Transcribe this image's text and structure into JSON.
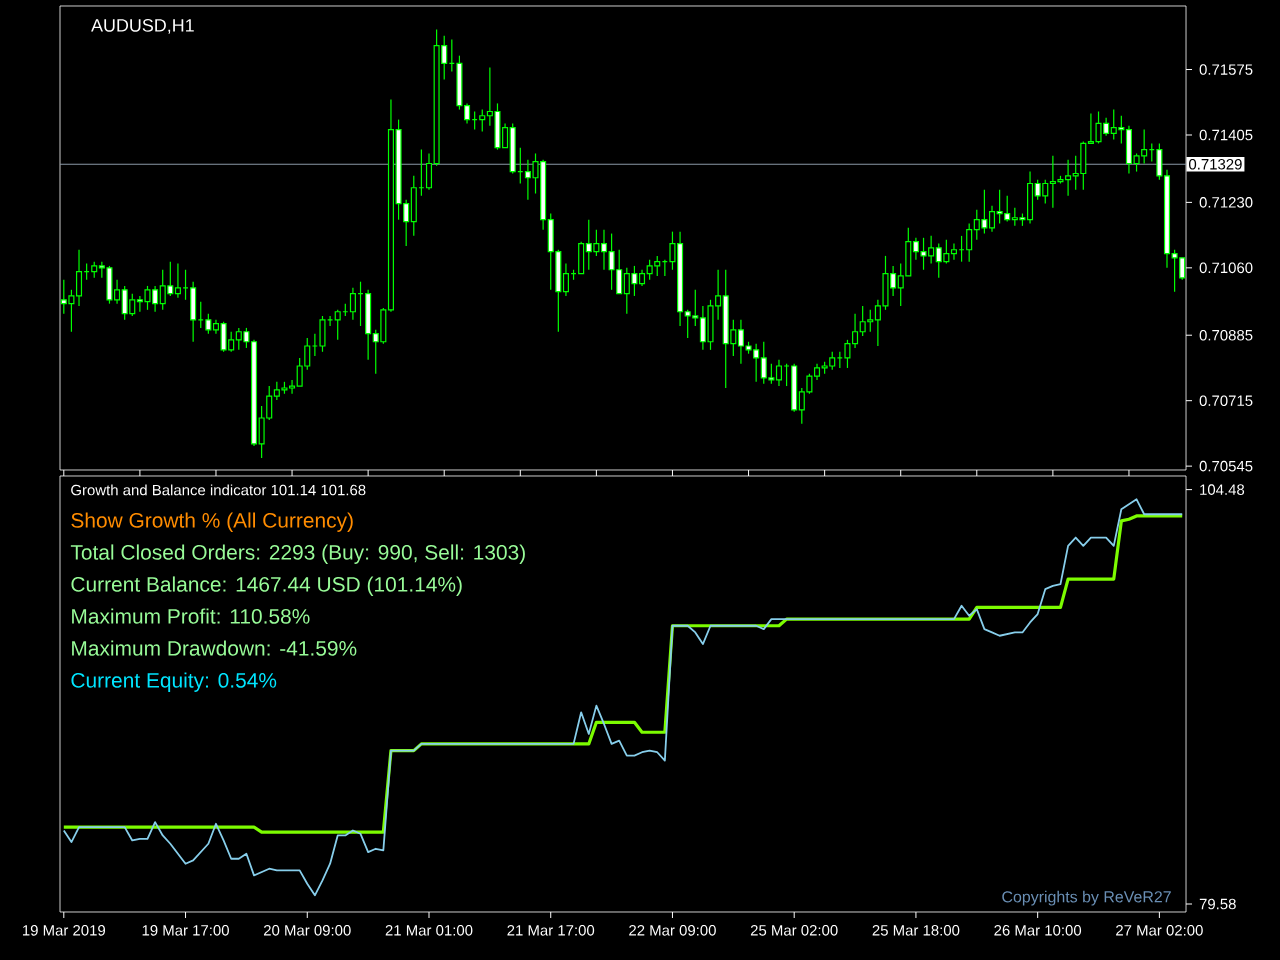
{
  "chart_data": [
    {
      "type": "candlestick",
      "title": "AUDUSD,H1",
      "color": "#00ff00",
      "tick_labels": "y",
      "categories": [
        null,
        null,
        null,
        null,
        null,
        null,
        null,
        null,
        null,
        null,
        null,
        null,
        null,
        null,
        null,
        null,
        null,
        null,
        null,
        null,
        null,
        null,
        null,
        null,
        null,
        null,
        null,
        null,
        null,
        null,
        null,
        null,
        null,
        null,
        null,
        null,
        null,
        null,
        null,
        null,
        null,
        null,
        null,
        null,
        null,
        null,
        null,
        null,
        null,
        null,
        null,
        null,
        null,
        null,
        null,
        null,
        null,
        null,
        null,
        null,
        null,
        null,
        null,
        null,
        null,
        null,
        null,
        null,
        null,
        null,
        null,
        null,
        null,
        null,
        null,
        null,
        null,
        null,
        null,
        null,
        null,
        null,
        null,
        null,
        null,
        null,
        null,
        null,
        null,
        null,
        null,
        null,
        null,
        null,
        null,
        null,
        null,
        null,
        null,
        null,
        null,
        null,
        null,
        null,
        null,
        null,
        null,
        null,
        null,
        null,
        null,
        null,
        null,
        null,
        null,
        null,
        null,
        null,
        null,
        null,
        null,
        null,
        null,
        null,
        null,
        null,
        null,
        null,
        null,
        null,
        null,
        null,
        null,
        null,
        null,
        null,
        null,
        null,
        null,
        null,
        null,
        null,
        null,
        null,
        null,
        null,
        null,
        null
      ],
      "ohlc": [
        [
          0.70977,
          0.71029,
          0.70941,
          0.70967
        ],
        [
          0.70967,
          0.71003,
          0.70894,
          0.70987
        ],
        [
          0.70987,
          0.71107,
          0.70961,
          0.7105
        ],
        [
          0.7105,
          0.71071,
          0.71029,
          0.7105
        ],
        [
          0.7105,
          0.71076,
          0.71034,
          0.71065
        ],
        [
          0.71065,
          0.71076,
          0.71034,
          0.7106
        ],
        [
          0.7106,
          0.71065,
          0.70967,
          0.70977
        ],
        [
          0.70977,
          0.71029,
          0.70967,
          0.71003
        ],
        [
          0.71003,
          0.71013,
          0.70925,
          0.70941
        ],
        [
          0.70941,
          0.70993,
          0.70935,
          0.70977
        ],
        [
          0.70977,
          0.70987,
          0.70946,
          0.70972
        ],
        [
          0.70972,
          0.71013,
          0.70951,
          0.71003
        ],
        [
          0.71003,
          0.71013,
          0.70946,
          0.70967
        ],
        [
          0.70967,
          0.71055,
          0.70951,
          0.71013
        ],
        [
          0.71013,
          0.71076,
          0.70987,
          0.70993
        ],
        [
          0.70993,
          0.71071,
          0.70982,
          0.71008
        ],
        [
          0.71008,
          0.71055,
          0.70977,
          0.71008
        ],
        [
          0.71008,
          0.71024,
          0.70868,
          0.70925
        ],
        [
          0.70925,
          0.70972,
          0.70904,
          0.70925
        ],
        [
          0.70925,
          0.70941,
          0.70889,
          0.70899
        ],
        [
          0.70899,
          0.70925,
          0.70889,
          0.70915
        ],
        [
          0.70915,
          0.7092,
          0.70842,
          0.70847
        ],
        [
          0.70847,
          0.70894,
          0.70842,
          0.70873
        ],
        [
          0.70873,
          0.70904,
          0.70847,
          0.70894
        ],
        [
          0.70894,
          0.70904,
          0.70852,
          0.70868
        ],
        [
          0.70868,
          0.70873,
          0.70597,
          0.70603
        ],
        [
          0.70603,
          0.70701,
          0.70566,
          0.7067
        ],
        [
          0.7067,
          0.70753,
          0.70665,
          0.70727
        ],
        [
          0.70727,
          0.70764,
          0.70717,
          0.70743
        ],
        [
          0.70743,
          0.70764,
          0.70733,
          0.70748
        ],
        [
          0.70748,
          0.70769,
          0.70733,
          0.70753
        ],
        [
          0.70753,
          0.70826,
          0.70753,
          0.70805
        ],
        [
          0.70805,
          0.70878,
          0.70795,
          0.70857
        ],
        [
          0.70857,
          0.70889,
          0.70831,
          0.70857
        ],
        [
          0.70857,
          0.70935,
          0.70842,
          0.70925
        ],
        [
          0.70925,
          0.70935,
          0.70909,
          0.70925
        ],
        [
          0.70925,
          0.70951,
          0.70873,
          0.70946
        ],
        [
          0.70946,
          0.70967,
          0.70935,
          0.70946
        ],
        [
          0.70946,
          0.71008,
          0.70925,
          0.70993
        ],
        [
          0.70993,
          0.71024,
          0.70909,
          0.70993
        ],
        [
          0.70993,
          0.71003,
          0.70821,
          0.70889
        ],
        [
          0.70889,
          0.70899,
          0.70785,
          0.70868
        ],
        [
          0.70868,
          0.70956,
          0.70863,
          0.70951
        ],
        [
          0.70951,
          0.71497,
          0.70946,
          0.71419
        ],
        [
          0.71419,
          0.71445,
          0.71185,
          0.71227
        ],
        [
          0.71227,
          0.71237,
          0.71117,
          0.7118
        ],
        [
          0.7118,
          0.71299,
          0.71143,
          0.71268
        ],
        [
          0.71268,
          0.71367,
          0.71247,
          0.71268
        ],
        [
          0.71268,
          0.71357,
          0.71263,
          0.71331
        ],
        [
          0.71331,
          0.71679,
          0.71325,
          0.71637
        ],
        [
          0.71637,
          0.71663,
          0.71549,
          0.71591
        ],
        [
          0.71591,
          0.71653,
          0.7157,
          0.71591
        ],
        [
          0.71591,
          0.71611,
          0.71471,
          0.71481
        ],
        [
          0.71481,
          0.71487,
          0.71435,
          0.71445
        ],
        [
          0.71445,
          0.71466,
          0.71419,
          0.71445
        ],
        [
          0.71445,
          0.71471,
          0.71414,
          0.71455
        ],
        [
          0.71455,
          0.7158,
          0.71429,
          0.71466
        ],
        [
          0.71466,
          0.71487,
          0.71367,
          0.71372
        ],
        [
          0.71372,
          0.71435,
          0.71372,
          0.71424
        ],
        [
          0.71424,
          0.71435,
          0.71305,
          0.7131
        ],
        [
          0.7131,
          0.71372,
          0.71279,
          0.7131
        ],
        [
          0.7131,
          0.71341,
          0.71237,
          0.71294
        ],
        [
          0.71294,
          0.71357,
          0.71253,
          0.71336
        ],
        [
          0.71336,
          0.71341,
          0.71159,
          0.71185
        ],
        [
          0.71185,
          0.71201,
          0.71003,
          0.71102
        ],
        [
          0.71102,
          0.71107,
          0.70894,
          0.70998
        ],
        [
          0.70998,
          0.71071,
          0.70987,
          0.71045
        ],
        [
          0.71045,
          0.71055,
          0.71029,
          0.71045
        ],
        [
          0.71045,
          0.71128,
          0.71045,
          0.71123
        ],
        [
          0.71123,
          0.71185,
          0.71055,
          0.71102
        ],
        [
          0.71102,
          0.71159,
          0.71091,
          0.71123
        ],
        [
          0.71123,
          0.71159,
          0.71055,
          0.71102
        ],
        [
          0.71102,
          0.71149,
          0.71003,
          0.71055
        ],
        [
          0.71055,
          0.71107,
          0.70993,
          0.70993
        ],
        [
          0.70993,
          0.7106,
          0.70941,
          0.71045
        ],
        [
          0.71045,
          0.71065,
          0.70987,
          0.71019
        ],
        [
          0.71019,
          0.71055,
          0.71013,
          0.71045
        ],
        [
          0.71045,
          0.71081,
          0.71029,
          0.71065
        ],
        [
          0.71065,
          0.71091,
          0.71039,
          0.71076
        ],
        [
          0.71076,
          0.71081,
          0.71039,
          0.71076
        ],
        [
          0.71076,
          0.71154,
          0.71055,
          0.71123
        ],
        [
          0.71123,
          0.71154,
          0.70909,
          0.70946
        ],
        [
          0.70946,
          0.70951,
          0.70878,
          0.70935
        ],
        [
          0.70935,
          0.71003,
          0.70909,
          0.7093
        ],
        [
          0.7093,
          0.70961,
          0.70847,
          0.70868
        ],
        [
          0.70868,
          0.70977,
          0.70847,
          0.70961
        ],
        [
          0.70961,
          0.71055,
          0.70925,
          0.70987
        ],
        [
          0.70987,
          0.71055,
          0.70748,
          0.70863
        ],
        [
          0.70863,
          0.70925,
          0.70831,
          0.70899
        ],
        [
          0.70899,
          0.70925,
          0.70811,
          0.70857
        ],
        [
          0.70857,
          0.70868,
          0.70837,
          0.70847
        ],
        [
          0.70847,
          0.70863,
          0.70764,
          0.70826
        ],
        [
          0.70826,
          0.70868,
          0.70759,
          0.70774
        ],
        [
          0.70774,
          0.70811,
          0.70759,
          0.70769
        ],
        [
          0.70769,
          0.70821,
          0.70753,
          0.70805
        ],
        [
          0.70805,
          0.70811,
          0.70753,
          0.70805
        ],
        [
          0.70805,
          0.70811,
          0.70686,
          0.70691
        ],
        [
          0.70691,
          0.70748,
          0.70655,
          0.70738
        ],
        [
          0.70738,
          0.70785,
          0.70733,
          0.70779
        ],
        [
          0.70779,
          0.70811,
          0.70769,
          0.708
        ],
        [
          0.708,
          0.70816,
          0.70785,
          0.70805
        ],
        [
          0.70805,
          0.70842,
          0.70795,
          0.70826
        ],
        [
          0.70826,
          0.70842,
          0.708,
          0.70826
        ],
        [
          0.70826,
          0.70873,
          0.708,
          0.70863
        ],
        [
          0.70863,
          0.70941,
          0.70852,
          0.70894
        ],
        [
          0.70894,
          0.70961,
          0.70883,
          0.7092
        ],
        [
          0.7092,
          0.70951,
          0.70894,
          0.70925
        ],
        [
          0.70925,
          0.70977,
          0.70857,
          0.70961
        ],
        [
          0.70961,
          0.71091,
          0.70951,
          0.71045
        ],
        [
          0.71045,
          0.71065,
          0.70987,
          0.71008
        ],
        [
          0.71008,
          0.71071,
          0.70961,
          0.71039
        ],
        [
          0.71039,
          0.71164,
          0.71039,
          0.71128
        ],
        [
          0.71128,
          0.71138,
          0.71081,
          0.71102
        ],
        [
          0.71102,
          0.71138,
          0.71055,
          0.71091
        ],
        [
          0.71091,
          0.71143,
          0.71071,
          0.71112
        ],
        [
          0.71112,
          0.71123,
          0.71034,
          0.71076
        ],
        [
          0.71076,
          0.71133,
          0.71071,
          0.71097
        ],
        [
          0.71097,
          0.71123,
          0.71081,
          0.71107
        ],
        [
          0.71107,
          0.71143,
          0.71076,
          0.71107
        ],
        [
          0.71107,
          0.71175,
          0.71076,
          0.71159
        ],
        [
          0.71159,
          0.71211,
          0.71133,
          0.71185
        ],
        [
          0.71185,
          0.71263,
          0.71149,
          0.71164
        ],
        [
          0.71164,
          0.71221,
          0.71154,
          0.71206
        ],
        [
          0.71206,
          0.71263,
          0.71175,
          0.71201
        ],
        [
          0.71201,
          0.71247,
          0.7118,
          0.71185
        ],
        [
          0.71185,
          0.71216,
          0.71169,
          0.7119
        ],
        [
          0.7119,
          0.71201,
          0.71169,
          0.71185
        ],
        [
          0.71185,
          0.7131,
          0.71175,
          0.71279
        ],
        [
          0.71279,
          0.71289,
          0.71237,
          0.71247
        ],
        [
          0.71247,
          0.71289,
          0.71227,
          0.71279
        ],
        [
          0.71279,
          0.71351,
          0.71216,
          0.71284
        ],
        [
          0.71284,
          0.71299,
          0.71279,
          0.71289
        ],
        [
          0.71289,
          0.71341,
          0.71247,
          0.71299
        ],
        [
          0.71299,
          0.71351,
          0.71263,
          0.71305
        ],
        [
          0.71305,
          0.71388,
          0.71263,
          0.71383
        ],
        [
          0.71383,
          0.71461,
          0.71383,
          0.71388
        ],
        [
          0.71388,
          0.71466,
          0.71383,
          0.71435
        ],
        [
          0.71435,
          0.7145,
          0.71403,
          0.71409
        ],
        [
          0.71409,
          0.71471,
          0.71393,
          0.71424
        ],
        [
          0.71424,
          0.71455,
          0.71383,
          0.71419
        ],
        [
          0.71419,
          0.71429,
          0.71305,
          0.71331
        ],
        [
          0.71331,
          0.71357,
          0.7131,
          0.71351
        ],
        [
          0.71351,
          0.71419,
          0.71331,
          0.71367
        ],
        [
          0.71367,
          0.71383,
          0.71336,
          0.71367
        ],
        [
          0.71367,
          0.71383,
          0.71289,
          0.71299
        ],
        [
          0.71299,
          0.71315,
          0.7106,
          0.71097
        ],
        [
          0.71097,
          0.71107,
          0.70998,
          0.71086
        ],
        [
          0.71086,
          0.71086,
          0.71029,
          0.71034
        ]
      ],
      "ylim": [
        0.70535,
        0.7174
      ],
      "yticks": [
        {
          "value": 0.71575,
          "label": "0.71575"
        },
        {
          "value": 0.71405,
          "label": "0.71405"
        },
        {
          "value": 0.7123,
          "label": "0.71230"
        },
        {
          "value": 0.7106,
          "label": "0.71060"
        },
        {
          "value": 0.70885,
          "label": "0.70885"
        },
        {
          "value": 0.70715,
          "label": "0.70715"
        },
        {
          "value": 0.70545,
          "label": "0.70545"
        }
      ],
      "ref_lines": [
        {
          "axis": "y",
          "value": 0.71329,
          "label": "0.71329",
          "color": "#8a99a6"
        }
      ]
    },
    {
      "type": "line",
      "title": "Growth and Balance indicator 101.14 101.68",
      "categories": [
        "19 Mar 2019",
        null,
        null,
        null,
        null,
        null,
        null,
        null,
        null,
        null,
        null,
        null,
        null,
        null,
        null,
        null,
        "19 Mar 17:00",
        null,
        null,
        null,
        null,
        null,
        null,
        null,
        null,
        null,
        null,
        null,
        null,
        null,
        null,
        null,
        "20 Mar 09:00",
        null,
        null,
        null,
        null,
        null,
        null,
        null,
        null,
        null,
        null,
        null,
        null,
        null,
        null,
        null,
        "21 Mar 01:00",
        null,
        null,
        null,
        null,
        null,
        null,
        null,
        null,
        null,
        null,
        null,
        null,
        null,
        null,
        null,
        "21 Mar 17:00",
        null,
        null,
        null,
        null,
        null,
        null,
        null,
        null,
        null,
        null,
        null,
        null,
        null,
        null,
        null,
        "22 Mar 09:00",
        null,
        null,
        null,
        null,
        null,
        null,
        null,
        null,
        null,
        null,
        null,
        null,
        null,
        null,
        null,
        "25 Mar 02:00",
        null,
        null,
        null,
        null,
        null,
        null,
        null,
        null,
        null,
        null,
        null,
        null,
        null,
        null,
        null,
        "25 Mar 18:00",
        null,
        null,
        null,
        null,
        null,
        null,
        null,
        null,
        null,
        null,
        null,
        null,
        null,
        null,
        null,
        "26 Mar 10:00",
        null,
        null,
        null,
        null,
        null,
        null,
        null,
        null,
        null,
        null,
        null,
        null,
        null,
        null,
        null,
        "27 Mar 02:00",
        null,
        null,
        null
      ],
      "series": [
        {
          "color": "#7cfc00",
          "values": [
            84.2,
            84.2,
            84.2,
            84.2,
            84.2,
            84.2,
            84.2,
            84.2,
            84.2,
            84.2,
            84.2,
            84.2,
            84.2,
            84.2,
            84.2,
            84.2,
            84.2,
            84.2,
            84.2,
            84.2,
            84.2,
            84.2,
            84.2,
            84.2,
            84.2,
            84.2,
            83.9,
            83.9,
            83.9,
            83.9,
            83.9,
            83.9,
            83.9,
            83.9,
            83.9,
            83.9,
            83.9,
            83.9,
            83.9,
            83.9,
            83.9,
            83.9,
            83.9,
            88.8,
            88.8,
            88.8,
            88.8,
            89.2,
            89.2,
            89.2,
            89.2,
            89.2,
            89.2,
            89.2,
            89.2,
            89.2,
            89.2,
            89.2,
            89.2,
            89.2,
            89.2,
            89.2,
            89.2,
            89.2,
            89.2,
            89.2,
            89.2,
            89.2,
            89.2,
            89.2,
            90.5,
            90.5,
            90.5,
            90.5,
            90.5,
            90.5,
            89.9,
            89.9,
            89.9,
            89.9,
            96.3,
            96.3,
            96.3,
            96.3,
            96.3,
            96.3,
            96.3,
            96.3,
            96.3,
            96.3,
            96.3,
            96.3,
            96.3,
            96.3,
            96.3,
            96.7,
            96.7,
            96.7,
            96.7,
            96.7,
            96.7,
            96.7,
            96.7,
            96.7,
            96.7,
            96.7,
            96.7,
            96.7,
            96.7,
            96.7,
            96.7,
            96.7,
            96.7,
            96.7,
            96.7,
            96.7,
            96.7,
            96.7,
            96.7,
            96.7,
            97.4,
            97.4,
            97.4,
            97.4,
            97.4,
            97.4,
            97.4,
            97.4,
            97.4,
            97.4,
            97.4,
            97.4,
            99.1,
            99.1,
            99.1,
            99.1,
            99.1,
            99.1,
            99.1,
            102.6,
            102.7,
            102.9,
            102.9,
            102.9,
            102.9,
            102.9,
            102.9,
            102.9
          ]
        },
        {
          "color": "#87ceeb",
          "values": [
            84.0,
            83.3,
            84.2,
            84.2,
            84.2,
            84.2,
            84.2,
            84.2,
            84.2,
            83.4,
            83.5,
            83.5,
            84.5,
            83.7,
            83.2,
            82.6,
            82.0,
            82.2,
            82.7,
            83.2,
            84.4,
            83.4,
            82.3,
            82.3,
            82.6,
            81.3,
            81.5,
            81.7,
            81.6,
            81.6,
            81.6,
            81.6,
            80.8,
            80.1,
            81.0,
            82.0,
            83.7,
            83.7,
            84.0,
            83.8,
            82.7,
            82.9,
            82.8,
            88.8,
            88.8,
            88.8,
            88.8,
            89.2,
            89.2,
            89.2,
            89.2,
            89.2,
            89.2,
            89.2,
            89.2,
            89.2,
            89.2,
            89.2,
            89.2,
            89.2,
            89.2,
            89.2,
            89.2,
            89.2,
            89.2,
            89.2,
            89.2,
            89.2,
            91.1,
            89.8,
            91.5,
            90.4,
            89.2,
            89.4,
            88.5,
            88.5,
            88.7,
            88.8,
            88.7,
            88.2,
            96.3,
            96.3,
            96.3,
            95.9,
            95.2,
            96.3,
            96.3,
            96.3,
            96.3,
            96.3,
            96.3,
            96.3,
            96.1,
            96.7,
            96.7,
            96.7,
            96.7,
            96.7,
            96.7,
            96.7,
            96.7,
            96.7,
            96.7,
            96.7,
            96.7,
            96.7,
            96.7,
            96.7,
            96.7,
            96.7,
            96.7,
            96.7,
            96.7,
            96.7,
            96.7,
            96.7,
            96.7,
            96.7,
            97.5,
            96.9,
            97.3,
            96.1,
            95.9,
            95.7,
            95.8,
            95.9,
            95.9,
            96.5,
            97.0,
            98.5,
            98.7,
            98.8,
            101.1,
            101.6,
            101.1,
            101.6,
            101.6,
            101.6,
            101.1,
            103.3,
            103.6,
            103.9,
            103.0,
            103.0,
            103.0,
            103.0,
            103.0,
            103.0
          ]
        }
      ],
      "ylim": [
        79.1,
        105.3
      ],
      "yticks": [
        104.48,
        79.58
      ],
      "annotations": [
        "Show Growth % (All Currency)",
        "Total Closed Orders: 2293 (Buy: 990, Sell: 1303)",
        "Current Balance: 1467.44 USD (101.14%)",
        "Maximum Profit: 110.58%",
        "Maximum Drawdown: -41.59%",
        "Current Equity: 0.54%",
        "Copyrights by ReVeR27"
      ]
    }
  ]
}
